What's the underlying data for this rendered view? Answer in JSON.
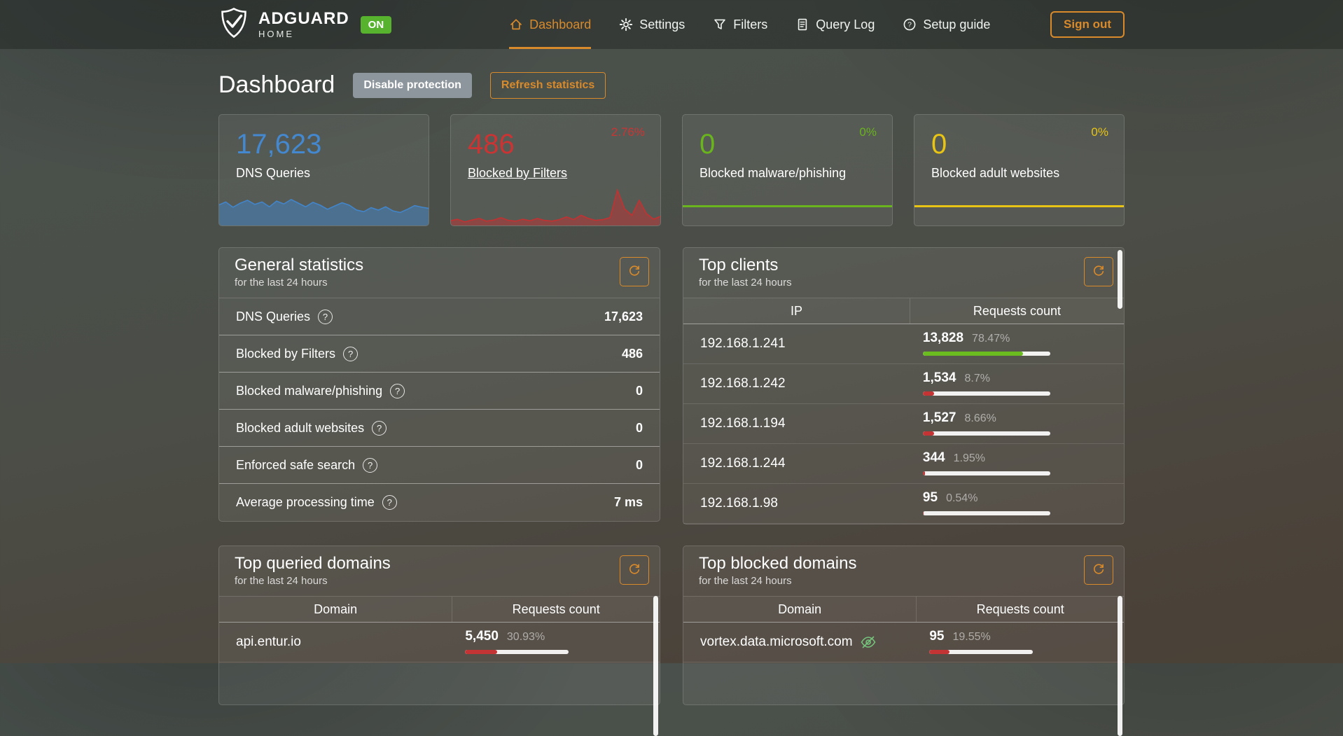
{
  "app": {
    "name": "ADGUARD",
    "subname": "HOME",
    "protection_badge": "ON"
  },
  "nav": {
    "items": [
      {
        "key": "nav-item-dashboard",
        "label": "Dashboard",
        "icon": "home-icon",
        "state": "active"
      },
      {
        "key": "nav-item-settings",
        "label": "Settings",
        "icon": "gear-icon",
        "state": ""
      },
      {
        "key": "nav-item-filters",
        "label": "Filters",
        "icon": "funnel-icon",
        "state": ""
      },
      {
        "key": "nav-item-query-log",
        "label": "Query Log",
        "icon": "document-icon",
        "state": ""
      },
      {
        "key": "nav-item-setup-guide",
        "label": "Setup guide",
        "icon": "help-icon",
        "state": ""
      }
    ],
    "sign_out_label": "Sign out"
  },
  "page": {
    "title": "Dashboard",
    "disable_protection_label": "Disable protection",
    "refresh_statistics_label": "Refresh statistics"
  },
  "colors": {
    "accent_orange": "#d98a2b",
    "blue": "#4488d0",
    "red": "#cc3434",
    "green": "#6ab41e",
    "yellow": "#e8c414",
    "bar_green": "#6abc1f",
    "bar_red": "#c53434",
    "on_badge_green": "#57b22e"
  },
  "stat_cards": [
    {
      "key": "stat-card-dns-queries",
      "value": "17,623",
      "label": "DNS Queries",
      "color": "blue",
      "delta": "",
      "delta_color": "",
      "label_class": ""
    },
    {
      "key": "stat-card-blocked-by-filters",
      "value": "486",
      "label": "Blocked by Filters",
      "color": "red",
      "delta": "2.76%",
      "delta_color": "red",
      "label_class": "underlined"
    },
    {
      "key": "stat-card-blocked-malware",
      "value": "0",
      "label": "Blocked malware/phishing",
      "color": "green",
      "delta": "0%",
      "delta_color": "green",
      "label_class": ""
    },
    {
      "key": "stat-card-blocked-adult",
      "value": "0",
      "label": "Blocked adult websites",
      "color": "yellow",
      "delta": "0%",
      "delta_color": "yellow",
      "label_class": ""
    }
  ],
  "general_statistics": {
    "title": "General statistics",
    "subtitle": "for the last 24 hours",
    "rows": [
      {
        "label": "DNS Queries",
        "value": "17,623"
      },
      {
        "label": "Blocked by Filters",
        "value": "486"
      },
      {
        "label": "Blocked malware/phishing",
        "value": "0"
      },
      {
        "label": "Blocked adult websites",
        "value": "0"
      },
      {
        "label": "Enforced safe search",
        "value": "0"
      },
      {
        "label": "Average processing time",
        "value": "7 ms"
      }
    ]
  },
  "top_clients": {
    "title": "Top clients",
    "subtitle": "for the last 24 hours",
    "columns": {
      "left": "IP",
      "right": "Requests count"
    },
    "rows": [
      {
        "name": "192.168.1.241",
        "count": "13,828",
        "percent_label": "78.47%",
        "percent": 78.47,
        "bar_color": "green",
        "eye_icon": false
      },
      {
        "name": "192.168.1.242",
        "count": "1,534",
        "percent_label": "8.7%",
        "percent": 8.7,
        "bar_color": "red",
        "eye_icon": false
      },
      {
        "name": "192.168.1.194",
        "count": "1,527",
        "percent_label": "8.66%",
        "percent": 8.66,
        "bar_color": "red",
        "eye_icon": false
      },
      {
        "name": "192.168.1.244",
        "count": "344",
        "percent_label": "1.95%",
        "percent": 1.95,
        "bar_color": "red",
        "eye_icon": false
      },
      {
        "name": "192.168.1.98",
        "count": "95",
        "percent_label": "0.54%",
        "percent": 0.54,
        "bar_color": "red",
        "eye_icon": false
      }
    ]
  },
  "top_queried_domains": {
    "title": "Top queried domains",
    "subtitle": "for the last 24 hours",
    "columns": {
      "left": "Domain",
      "right": "Requests count"
    },
    "rows": [
      {
        "name": "api.entur.io",
        "count": "5,450",
        "percent_label": "30.93%",
        "percent": 30.93,
        "bar_color": "red",
        "eye_icon": false
      }
    ]
  },
  "top_blocked_domains": {
    "title": "Top blocked domains",
    "subtitle": "for the last 24 hours",
    "columns": {
      "left": "Domain",
      "right": "Requests count"
    },
    "rows": [
      {
        "name": "vortex.data.microsoft.com",
        "count": "95",
        "percent_label": "19.55%",
        "percent": 19.55,
        "bar_color": "red",
        "eye_icon": true
      }
    ]
  },
  "chart_data": [
    {
      "type": "area",
      "name": "dns-queries-sparkline",
      "color": "#4285ca",
      "height": 58,
      "values": [
        50,
        58,
        45,
        55,
        62,
        52,
        58,
        46,
        60,
        53,
        64,
        55,
        46,
        57,
        50,
        40,
        48,
        56,
        50,
        38,
        34,
        44,
        38,
        46,
        36,
        32,
        40,
        49,
        45,
        42
      ]
    },
    {
      "type": "area",
      "name": "blocked-by-filters-sparkline",
      "color": "#c23232",
      "height": 56,
      "values": [
        12,
        16,
        9,
        14,
        18,
        11,
        14,
        20,
        13,
        11,
        16,
        12,
        18,
        13,
        11,
        15,
        22,
        15,
        26,
        18,
        13,
        15,
        20,
        90,
        42,
        26,
        64,
        30,
        16,
        24
      ]
    },
    {
      "type": "line",
      "name": "blocked-malware-sparkline",
      "color": "#6ab41e",
      "values": [
        0,
        0
      ]
    },
    {
      "type": "line",
      "name": "blocked-adult-sparkline",
      "color": "#e8c414",
      "values": [
        0,
        0
      ]
    }
  ]
}
